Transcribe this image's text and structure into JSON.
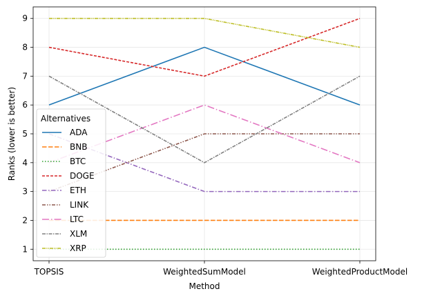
{
  "chart_data": {
    "type": "line",
    "title": "",
    "xlabel": "Method",
    "ylabel": "Ranks (lower is better)",
    "categories": [
      "TOPSIS",
      "WeightedSumModel",
      "WeightedProductModel"
    ],
    "ylim": [
      0.6,
      9.4
    ],
    "yticks": [
      "1",
      "2",
      "3",
      "4",
      "5",
      "6",
      "7",
      "8",
      "9"
    ],
    "grid": true,
    "legend": {
      "title": "Alternatives",
      "placement": "lower-left"
    },
    "series": [
      {
        "name": "ADA",
        "values": [
          6,
          8,
          6
        ],
        "color": "#1f77b4",
        "dash": "solid"
      },
      {
        "name": "BNB",
        "values": [
          2,
          2,
          2
        ],
        "color": "#ff7f0e",
        "dash": "dashed"
      },
      {
        "name": "BTC",
        "values": [
          1,
          1,
          1
        ],
        "color": "#2ca02c",
        "dash": "dotted"
      },
      {
        "name": "DOGE",
        "values": [
          8,
          7,
          9
        ],
        "color": "#d62728",
        "dash": "dashed-short"
      },
      {
        "name": "ETH",
        "values": [
          5,
          3,
          3
        ],
        "color": "#9467bd",
        "dash": "dashdot"
      },
      {
        "name": "LINK",
        "values": [
          3,
          5,
          5
        ],
        "color": "#8c564b",
        "dash": "dashdotdot"
      },
      {
        "name": "LTC",
        "values": [
          4,
          6,
          4
        ],
        "color": "#e377c2",
        "dash": "longdashdot"
      },
      {
        "name": "XLM",
        "values": [
          7,
          4,
          7
        ],
        "color": "#7f7f7f",
        "dash": "dashdot-tight"
      },
      {
        "name": "XRP",
        "values": [
          9,
          9,
          8
        ],
        "color": "#bcbd22",
        "dash": "dashdotdot-tight"
      }
    ]
  }
}
